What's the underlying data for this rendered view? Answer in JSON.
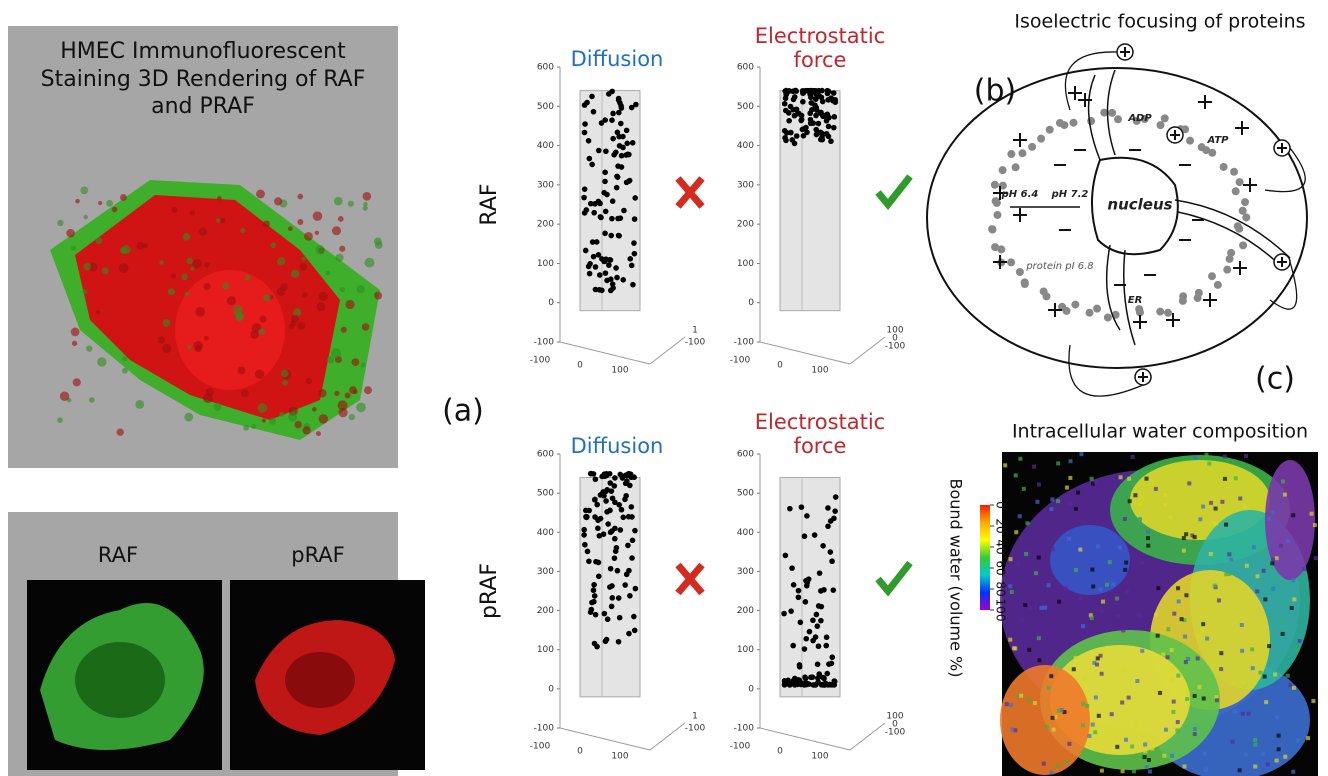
{
  "left_panel": {
    "title": "HMEC Immunofluorescent Staining 3D Rendering of RAF and PRAF",
    "images": [
      "RAF",
      "pRAF"
    ]
  },
  "panel_a": {
    "label": "(a)",
    "column_titles": [
      "Diffusion",
      "Electrostatic force"
    ],
    "row_labels": [
      "RAF",
      "pRAF"
    ],
    "yticks": [
      600,
      500,
      400,
      300,
      200,
      100,
      0,
      -100
    ],
    "xticks": [
      -100,
      0,
      100
    ],
    "depth_ticks": [
      [
        1,
        -100
      ],
      [
        100,
        0,
        -100
      ]
    ]
  },
  "panel_b": {
    "label": "(b)",
    "title": "Isoelectric focusing of proteins",
    "labels": {
      "adp": "ADP",
      "atp": "ATP",
      "ph_outer": "pH 6.4",
      "ph_inner": "pH 7.2",
      "nucleus": "nucleus",
      "protein": "protein pI 6.8",
      "er": "ER"
    }
  },
  "panel_c": {
    "label": "(c)",
    "title": "Intracellular water composition",
    "colorbar_label": "Bound water (volume %)",
    "colorbar_ticks": [
      0,
      20,
      40,
      60,
      80,
      100
    ]
  }
}
